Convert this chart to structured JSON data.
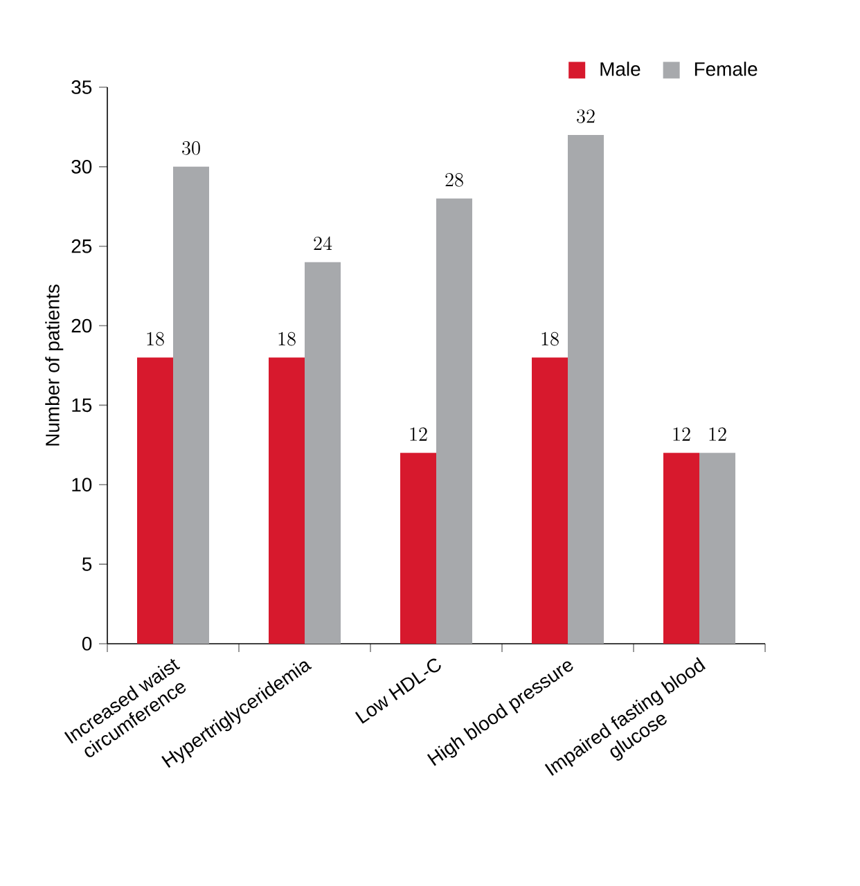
{
  "chart_data": {
    "type": "bar",
    "ylabel": "Number of patients",
    "categories": [
      "Increased waist circumference",
      "Hypertriglyceridemia",
      "Low HDL-C",
      "High blood pressure",
      "Impaired fasting blood glucose"
    ],
    "series": [
      {
        "name": "Male",
        "color": "#d7192d",
        "values": [
          18,
          18,
          12,
          18,
          12
        ]
      },
      {
        "name": "Female",
        "color": "#a7a9ac",
        "values": [
          30,
          24,
          28,
          32,
          12
        ]
      }
    ],
    "ylim": [
      0,
      35
    ],
    "yticks": [
      0,
      5,
      10,
      15,
      20,
      25,
      30,
      35
    ],
    "data_labels": true,
    "legend": "top right",
    "grid": false
  }
}
